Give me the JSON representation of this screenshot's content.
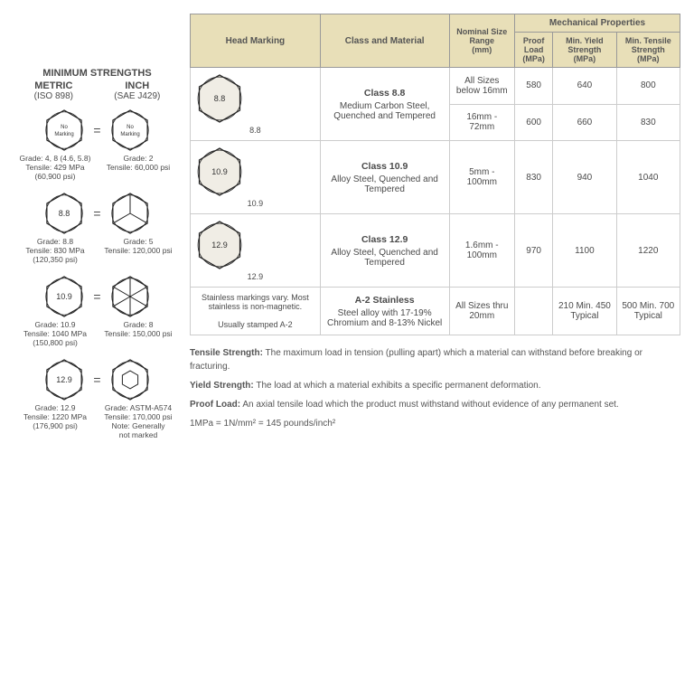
{
  "left": {
    "title": "MINIMUM STRENGTHS",
    "metric_hdr": "METRIC",
    "metric_sub": "(ISO 898)",
    "inch_hdr": "INCH",
    "inch_sub": "(SAE J429)",
    "rows": [
      {
        "m_mark": "No\nMarking",
        "m_grade": "Grade: 4, 8 (4.6, 5.8)",
        "m_tensile": "Tensile: 429 MPa",
        "m_psi": "(60,900 psi)",
        "i_mark": "No\nMarking",
        "i_grade": "Grade: 2",
        "i_tensile": "Tensile: 60,000 psi",
        "i_psi": ""
      },
      {
        "m_mark": "8.8",
        "m_grade": "Grade: 8.8",
        "m_tensile": "Tensile: 830 MPa",
        "m_psi": "(120,350 psi)",
        "i_mark": "",
        "i_lines": 3,
        "i_grade": "Grade: 5",
        "i_tensile": "Tensile: 120,000 psi",
        "i_psi": ""
      },
      {
        "m_mark": "10.9",
        "m_grade": "Grade: 10.9",
        "m_tensile": "Tensile: 1040 MPa",
        "m_psi": "(150,800 psi)",
        "i_mark": "",
        "i_lines": 6,
        "i_grade": "Grade: 8",
        "i_tensile": "Tensile: 150,000 psi",
        "i_psi": ""
      },
      {
        "m_mark": "12.9",
        "m_grade": "Grade: 12.9",
        "m_tensile": "Tensile: 1220 MPa",
        "m_psi": "(176,900 psi)",
        "i_mark": "",
        "i_small_hex": true,
        "i_grade": "Grade: ASTM-A574",
        "i_tensile": "Tensile: 170,000 psi",
        "i_psi": "Note: Generally\nnot marked"
      }
    ]
  },
  "table": {
    "headers": {
      "head_marking": "Head Marking",
      "class_mat": "Class and Material",
      "nom_size": "Nominal Size Range",
      "nom_unit": "(mm)",
      "mech": "Mechanical Properties",
      "proof": "Proof Load",
      "proof_u": "(MPa)",
      "yield": "Min. Yield Strength",
      "yield_u": "(MPa)",
      "tensile": "Min. Tensile Strength",
      "tensile_u": "(MPa)"
    },
    "rows": [
      {
        "mark": "8.8",
        "cls": "Class 8.8",
        "mat": "Medium Carbon Steel, Quenched and Tempered",
        "sizes": [
          {
            "r": "All Sizes below 16mm",
            "p": "580",
            "y": "640",
            "t": "800"
          },
          {
            "r": "16mm - 72mm",
            "p": "600",
            "y": "660",
            "t": "830"
          }
        ]
      },
      {
        "mark": "10.9",
        "cls": "Class 10.9",
        "mat": "Alloy Steel, Quenched and Tempered",
        "sizes": [
          {
            "r": "5mm - 100mm",
            "p": "830",
            "y": "940",
            "t": "1040"
          }
        ]
      },
      {
        "mark": "12.9",
        "cls": "Class 12.9",
        "mat": "Alloy Steel, Quenched and Tempered",
        "sizes": [
          {
            "r": "1.6mm - 100mm",
            "p": "970",
            "y": "1100",
            "t": "1220"
          }
        ]
      },
      {
        "mark_text": "Stainless markings vary. Most stainless is non-magnetic.\n\nUsually stamped A-2",
        "cls": "A-2 Stainless",
        "mat": "Steel alloy with 17-19% Chromium and 8-13% Nickel",
        "sizes": [
          {
            "r": "All Sizes thru 20mm",
            "p": "",
            "y": "210 Min. 450 Typical",
            "t": "500 Min. 700 Typical"
          }
        ]
      }
    ]
  },
  "defs": {
    "tensile_l": "Tensile Strength:",
    "tensile_t": " The maximum load in tension (pulling apart) which a material can withstand before breaking or fracturing.",
    "yield_l": "Yield Strength:",
    "yield_t": " The load at which a material exhibits a specific permanent deformation.",
    "proof_l": "Proof Load:",
    "proof_t": " An axial tensile load which the product must withstand without evidence of any permanent set.",
    "conv": "1MPa = 1N/mm² = 145 pounds/inch²"
  },
  "style": {
    "header_bg": "#e8dfb8",
    "hex_fill": "#f0ede5",
    "hex_stroke": "#222"
  }
}
